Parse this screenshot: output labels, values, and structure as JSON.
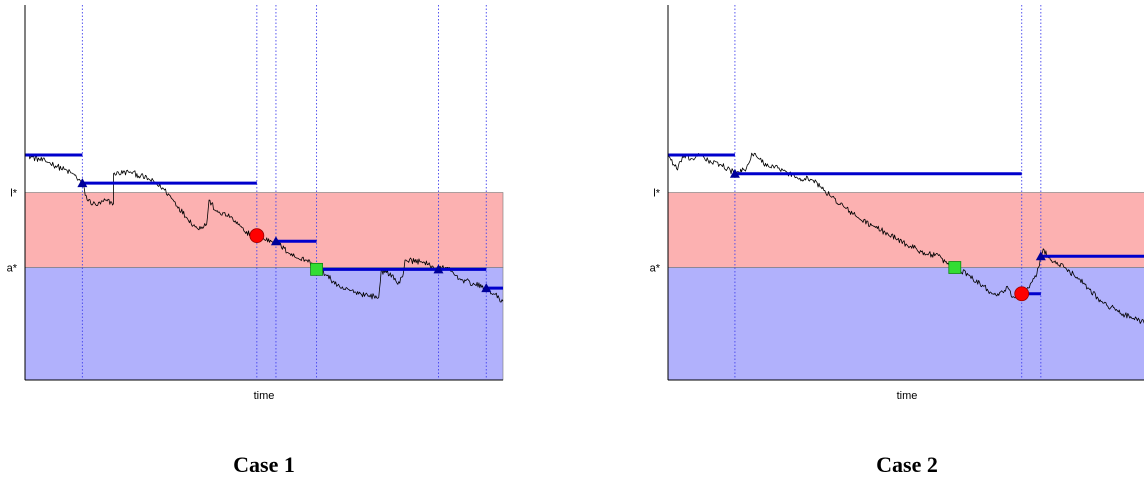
{
  "colors": {
    "upper_band": "#fcb1b1",
    "lower_band": "#b1b1fc",
    "band_border": "#777777",
    "axis": "#000000",
    "path": "#000000",
    "level_line": "#0000cc",
    "vline": "#4444ee",
    "triangle": "#000099",
    "circle": "#ff0000",
    "square": "#33dd33"
  },
  "panels": [
    {
      "caption": "Case 1",
      "chart_data": {
        "type": "line",
        "xlabel": "time",
        "ylabel": "",
        "xlim": [
          0,
          100
        ],
        "ylim": [
          0,
          100
        ],
        "y_tick_labels": [
          {
            "label": "l*",
            "value": 50
          },
          {
            "label": "a*",
            "value": 30
          }
        ],
        "bands": [
          {
            "from": 30,
            "to": 50,
            "color": "upper_band"
          },
          {
            "from": 0,
            "to": 30,
            "color": "lower_band"
          }
        ],
        "vertical_markers_x": [
          12,
          48.5,
          52.5,
          61,
          86.5,
          96.5
        ],
        "level_segments": [
          {
            "x0": 0,
            "x1": 12,
            "y": 60
          },
          {
            "x0": 12,
            "x1": 48.5,
            "y": 52.5
          },
          {
            "x0": 52.5,
            "x1": 61,
            "y": 37
          },
          {
            "x0": 61,
            "x1": 96.5,
            "y": 29.5
          },
          {
            "x0": 96.5,
            "x1": 100,
            "y": 24.5
          }
        ],
        "path_anchors": [
          [
            0,
            60
          ],
          [
            5,
            58
          ],
          [
            10,
            55
          ],
          [
            12,
            52.5
          ],
          [
            13,
            48
          ],
          [
            15,
            46.5
          ],
          [
            17,
            48
          ],
          [
            18.5,
            47
          ],
          [
            18.5,
            55
          ],
          [
            22,
            55.5
          ],
          [
            26,
            53.5
          ],
          [
            29,
            51
          ],
          [
            31,
            48
          ],
          [
            34,
            43
          ],
          [
            36,
            40.5
          ],
          [
            38,
            41.5
          ],
          [
            38.5,
            48
          ],
          [
            40,
            45
          ],
          [
            43,
            43.5
          ],
          [
            46,
            39.5
          ],
          [
            48.5,
            38.5
          ],
          [
            50,
            37.5
          ],
          [
            52.5,
            37
          ],
          [
            55,
            34
          ],
          [
            57,
            32.5
          ],
          [
            59,
            32
          ],
          [
            61,
            29.5
          ],
          [
            63,
            28
          ],
          [
            66,
            24.5
          ],
          [
            69,
            23.5
          ],
          [
            72,
            22.5
          ],
          [
            74,
            22
          ],
          [
            74.5,
            29
          ],
          [
            77,
            28
          ],
          [
            78,
            25.5
          ],
          [
            79,
            27.5
          ],
          [
            79.5,
            32
          ],
          [
            83,
            31.5
          ],
          [
            86.5,
            29.5
          ],
          [
            88,
            30
          ],
          [
            91,
            27
          ],
          [
            94,
            25.5
          ],
          [
            96.5,
            24.5
          ],
          [
            98,
            23
          ],
          [
            100,
            21
          ]
        ],
        "markers": [
          {
            "shape": "triangle",
            "x": 12,
            "y": 52.5
          },
          {
            "shape": "circle",
            "x": 48.5,
            "y": 38.5
          },
          {
            "shape": "triangle",
            "x": 52.5,
            "y": 37
          },
          {
            "shape": "square",
            "x": 61,
            "y": 29.5
          },
          {
            "shape": "triangle",
            "x": 86.5,
            "y": 29.5
          },
          {
            "shape": "triangle",
            "x": 96.5,
            "y": 24.5
          }
        ]
      }
    },
    {
      "caption": "Case 2",
      "chart_data": {
        "type": "line",
        "xlabel": "time",
        "ylabel": "",
        "xlim": [
          0,
          100
        ],
        "ylim": [
          0,
          100
        ],
        "y_tick_labels": [
          {
            "label": "l*",
            "value": 50
          },
          {
            "label": "a*",
            "value": 30
          }
        ],
        "bands": [
          {
            "from": 30,
            "to": 50,
            "color": "upper_band"
          },
          {
            "from": 0,
            "to": 30,
            "color": "lower_band"
          }
        ],
        "vertical_markers_x": [
          14,
          74,
          78
        ],
        "level_segments": [
          {
            "x0": 0,
            "x1": 14,
            "y": 60
          },
          {
            "x0": 14,
            "x1": 74,
            "y": 55
          },
          {
            "x0": 74,
            "x1": 78,
            "y": 23
          },
          {
            "x0": 78,
            "x1": 100,
            "y": 33
          }
        ],
        "path_anchors": [
          [
            0,
            60
          ],
          [
            2,
            56
          ],
          [
            3,
            59.5
          ],
          [
            5,
            59
          ],
          [
            7,
            60
          ],
          [
            9,
            58
          ],
          [
            11,
            57.5
          ],
          [
            13,
            56
          ],
          [
            14,
            55
          ],
          [
            16,
            56
          ],
          [
            17,
            58
          ],
          [
            17.5,
            60.5
          ],
          [
            19,
            59
          ],
          [
            21,
            57
          ],
          [
            24,
            56
          ],
          [
            27,
            54
          ],
          [
            30,
            53.5
          ],
          [
            32,
            51.5
          ],
          [
            34,
            49
          ],
          [
            37,
            46
          ],
          [
            40,
            43
          ],
          [
            43,
            41
          ],
          [
            46,
            39
          ],
          [
            48,
            37.5
          ],
          [
            50,
            36
          ],
          [
            52,
            35
          ],
          [
            54,
            33.5
          ],
          [
            56,
            33.5
          ],
          [
            58,
            31.5
          ],
          [
            60,
            30
          ],
          [
            63,
            28
          ],
          [
            66,
            25
          ],
          [
            68,
            23
          ],
          [
            70,
            23.5
          ],
          [
            71,
            25
          ],
          [
            72,
            22
          ],
          [
            74,
            23.5
          ],
          [
            75,
            24
          ],
          [
            76,
            26
          ],
          [
            77,
            27.5
          ],
          [
            77.5,
            30
          ],
          [
            78.5,
            35
          ],
          [
            80,
            32
          ],
          [
            83,
            30
          ],
          [
            86,
            27
          ],
          [
            88,
            24.5
          ],
          [
            91,
            20.5
          ],
          [
            94,
            18.5
          ],
          [
            97,
            16.5
          ],
          [
            100,
            15
          ]
        ],
        "markers": [
          {
            "shape": "triangle",
            "x": 14,
            "y": 55
          },
          {
            "shape": "square",
            "x": 60,
            "y": 30
          },
          {
            "shape": "circle",
            "x": 74,
            "y": 23
          },
          {
            "shape": "triangle",
            "x": 78,
            "y": 33
          }
        ]
      }
    }
  ]
}
